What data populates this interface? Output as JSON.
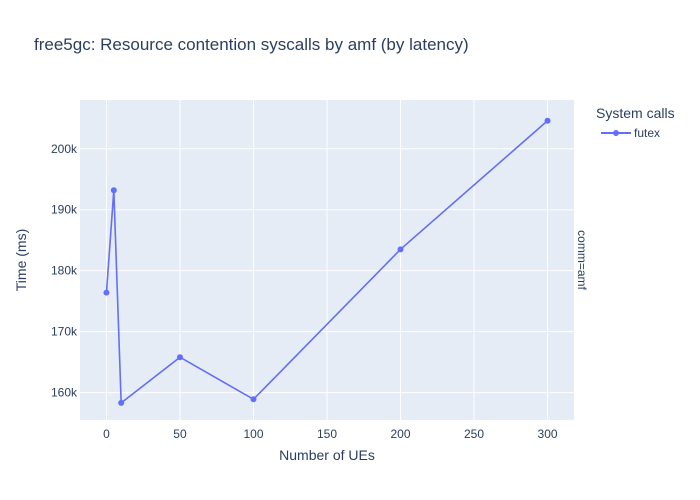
{
  "chart_data": {
    "type": "line",
    "title": "free5gc: Resource contention syscalls by amf (by latency)",
    "xlabel": "Number of UEs",
    "ylabel": "Time (ms)",
    "legend_title": "System calls",
    "facet_label": "comm=amf",
    "xlim": [
      -18,
      318
    ],
    "ylim": [
      155500,
      208000
    ],
    "x_ticks": [
      0,
      50,
      100,
      150,
      200,
      250,
      300
    ],
    "x_tick_labels": [
      "0",
      "50",
      "100",
      "150",
      "200",
      "250",
      "300"
    ],
    "y_ticks": [
      160000,
      170000,
      180000,
      190000,
      200000
    ],
    "y_tick_labels": [
      "160k",
      "170k",
      "180k",
      "190k",
      "200k"
    ],
    "grid": true,
    "legend_position": "top-right",
    "series": [
      {
        "name": "futex",
        "color": "#636efa",
        "x": [
          0,
          5,
          10,
          50,
          100,
          200,
          300
        ],
        "y": [
          176400,
          193200,
          158300,
          165800,
          158900,
          183500,
          204600
        ]
      }
    ]
  }
}
